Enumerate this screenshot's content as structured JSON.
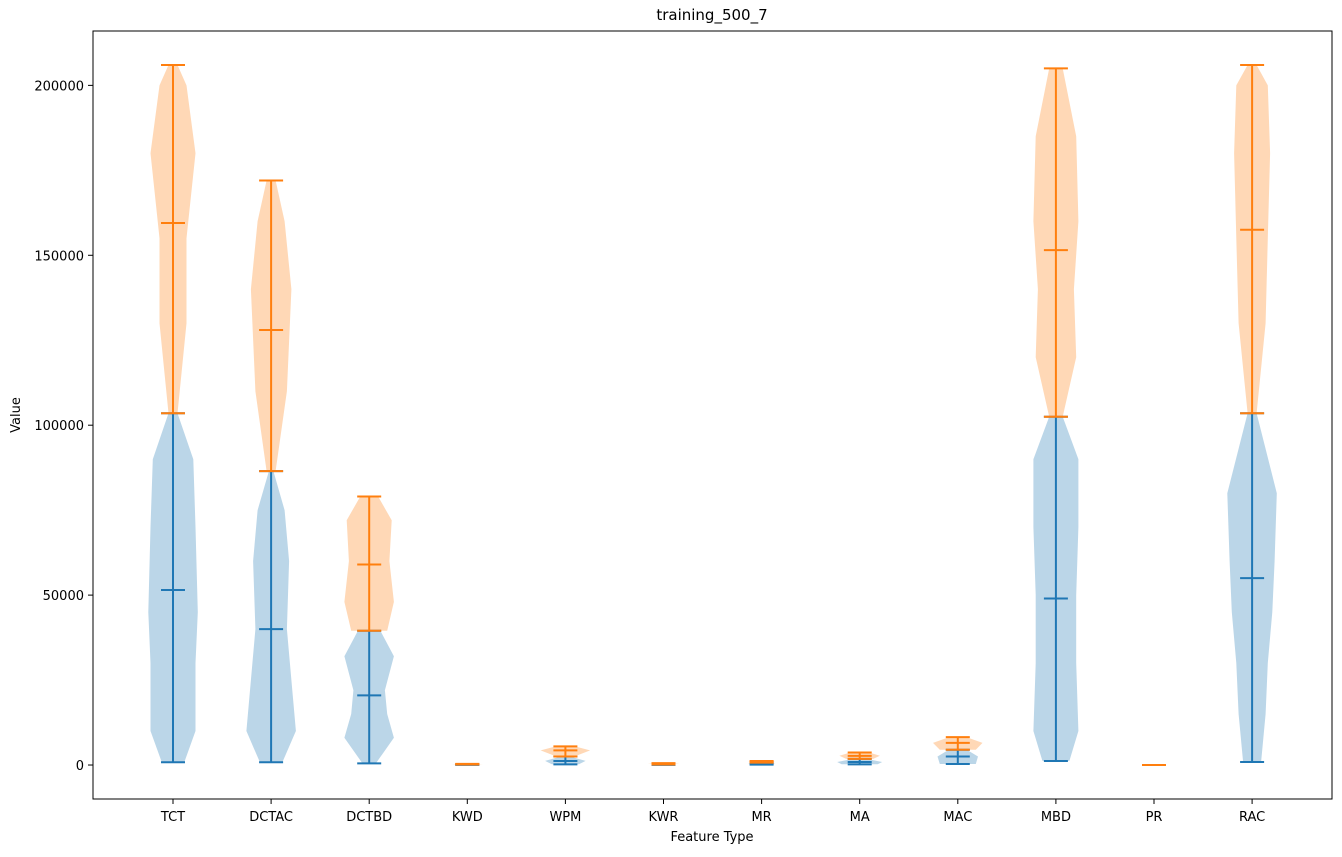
{
  "chart_data": {
    "type": "violin",
    "title": "training_500_7",
    "xlabel": "Feature Type",
    "ylabel": "Value",
    "ylim": [
      -10000,
      216000
    ],
    "yticks": [
      0,
      50000,
      100000,
      150000,
      200000
    ],
    "ytick_labels": [
      "0",
      "50000",
      "100000",
      "150000",
      "200000"
    ],
    "grid": false,
    "categories": [
      "TCT",
      "DCTAC",
      "DCTBD",
      "KWD",
      "WPM",
      "KWR",
      "MR",
      "MA",
      "MAC",
      "MBD",
      "PR",
      "RAC"
    ],
    "colors": {
      "series_a_fill": "#1f77b4",
      "series_b_fill": "#ff7f0e",
      "fill_opacity": 0.3
    },
    "series": [
      {
        "stats": [
          {
            "min": 800,
            "max": 103500,
            "mean": 51500,
            "width": [
              [
                800,
                0.25
              ],
              [
                10000,
                0.5
              ],
              [
                30000,
                0.5
              ],
              [
                45000,
                0.55
              ],
              [
                70000,
                0.5
              ],
              [
                90000,
                0.45
              ],
              [
                103500,
                0.1
              ]
            ]
          },
          {
            "min": 800,
            "max": 86500,
            "mean": 40000,
            "width": [
              [
                800,
                0.25
              ],
              [
                10000,
                0.55
              ],
              [
                25000,
                0.45
              ],
              [
                40000,
                0.35
              ],
              [
                60000,
                0.4
              ],
              [
                75000,
                0.3
              ],
              [
                86500,
                0.05
              ]
            ]
          },
          {
            "min": 500,
            "max": 39500,
            "mean": 20500,
            "width": [
              [
                500,
                0.15
              ],
              [
                8000,
                0.55
              ],
              [
                15000,
                0.4
              ],
              [
                22000,
                0.35
              ],
              [
                32000,
                0.55
              ],
              [
                39500,
                0.25
              ]
            ]
          },
          {
            "min": 50,
            "max": 150,
            "mean": 100,
            "width": [
              [
                50,
                0.1
              ],
              [
                100,
                0.3
              ],
              [
                150,
                0.1
              ]
            ]
          },
          {
            "min": 200,
            "max": 2500,
            "mean": 1200,
            "width": [
              [
                200,
                0.3
              ],
              [
                1200,
                0.45
              ],
              [
                2500,
                0.1
              ]
            ]
          },
          {
            "min": 50,
            "max": 150,
            "mean": 100,
            "width": [
              [
                50,
                0.1
              ],
              [
                100,
                0.3
              ],
              [
                150,
                0.1
              ]
            ]
          },
          {
            "min": 100,
            "max": 700,
            "mean": 400,
            "width": [
              [
                100,
                0.2
              ],
              [
                400,
                0.3
              ],
              [
                700,
                0.1
              ]
            ]
          },
          {
            "min": 200,
            "max": 1800,
            "mean": 900,
            "width": [
              [
                200,
                0.4
              ],
              [
                900,
                0.5
              ],
              [
                1800,
                0.15
              ]
            ]
          },
          {
            "min": 300,
            "max": 4500,
            "mean": 2500,
            "width": [
              [
                300,
                0.4
              ],
              [
                2500,
                0.45
              ],
              [
                4500,
                0.2
              ]
            ]
          },
          {
            "min": 1200,
            "max": 102500,
            "mean": 49000,
            "width": [
              [
                1200,
                0.3
              ],
              [
                10000,
                0.5
              ],
              [
                30000,
                0.45
              ],
              [
                50000,
                0.45
              ],
              [
                70000,
                0.5
              ],
              [
                90000,
                0.5
              ],
              [
                102500,
                0.15
              ]
            ]
          },
          {
            "min": 0,
            "max": 10,
            "mean": 5,
            "width": [
              [
                0,
                0.05
              ],
              [
                5,
                0.15
              ],
              [
                10,
                0.05
              ]
            ]
          },
          {
            "min": 900,
            "max": 103500,
            "mean": 55000,
            "width": [
              [
                900,
                0.2
              ],
              [
                15000,
                0.3
              ],
              [
                30000,
                0.35
              ],
              [
                45000,
                0.45
              ],
              [
                60000,
                0.5
              ],
              [
                80000,
                0.55
              ],
              [
                103500,
                0.1
              ]
            ]
          }
        ]
      },
      {
        "stats": [
          {
            "min": 103500,
            "max": 206000,
            "mean": 159500,
            "width": [
              [
                103500,
                0.1
              ],
              [
                130000,
                0.3
              ],
              [
                155000,
                0.3
              ],
              [
                180000,
                0.5
              ],
              [
                200000,
                0.3
              ],
              [
                206000,
                0.1
              ]
            ]
          },
          {
            "min": 86500,
            "max": 172000,
            "mean": 128000,
            "width": [
              [
                86500,
                0.1
              ],
              [
                110000,
                0.35
              ],
              [
                140000,
                0.45
              ],
              [
                160000,
                0.3
              ],
              [
                172000,
                0.1
              ]
            ]
          },
          {
            "min": 39500,
            "max": 79000,
            "mean": 59000,
            "width": [
              [
                39500,
                0.4
              ],
              [
                48000,
                0.55
              ],
              [
                60000,
                0.45
              ],
              [
                72000,
                0.5
              ],
              [
                79000,
                0.2
              ]
            ]
          },
          {
            "min": 150,
            "max": 350,
            "mean": 250,
            "width": [
              [
                150,
                0.1
              ],
              [
                250,
                0.35
              ],
              [
                350,
                0.1
              ]
            ]
          },
          {
            "min": 2500,
            "max": 5500,
            "mean": 4300,
            "width": [
              [
                2500,
                0.2
              ],
              [
                4300,
                0.55
              ],
              [
                5500,
                0.2
              ]
            ]
          },
          {
            "min": 150,
            "max": 550,
            "mean": 350,
            "width": [
              [
                150,
                0.1
              ],
              [
                350,
                0.35
              ],
              [
                550,
                0.1
              ]
            ]
          },
          {
            "min": 700,
            "max": 1200,
            "mean": 950,
            "width": [
              [
                700,
                0.1
              ],
              [
                950,
                0.3
              ],
              [
                1200,
                0.1
              ]
            ]
          },
          {
            "min": 1800,
            "max": 3700,
            "mean": 2700,
            "width": [
              [
                1800,
                0.3
              ],
              [
                2700,
                0.45
              ],
              [
                3700,
                0.2
              ]
            ]
          },
          {
            "min": 4500,
            "max": 8200,
            "mean": 6500,
            "width": [
              [
                4500,
                0.4
              ],
              [
                6500,
                0.55
              ],
              [
                8200,
                0.2
              ]
            ]
          },
          {
            "min": 102500,
            "max": 205000,
            "mean": 151500,
            "width": [
              [
                102500,
                0.15
              ],
              [
                120000,
                0.45
              ],
              [
                140000,
                0.4
              ],
              [
                160000,
                0.5
              ],
              [
                185000,
                0.45
              ],
              [
                205000,
                0.15
              ]
            ]
          },
          {
            "min": 0,
            "max": 20,
            "mean": 10,
            "width": [
              [
                0,
                0.05
              ],
              [
                10,
                0.15
              ],
              [
                20,
                0.05
              ]
            ]
          },
          {
            "min": 103500,
            "max": 206000,
            "mean": 157500,
            "width": [
              [
                103500,
                0.1
              ],
              [
                130000,
                0.3
              ],
              [
                155000,
                0.35
              ],
              [
                180000,
                0.4
              ],
              [
                200000,
                0.35
              ],
              [
                206000,
                0.1
              ]
            ]
          }
        ]
      }
    ]
  }
}
